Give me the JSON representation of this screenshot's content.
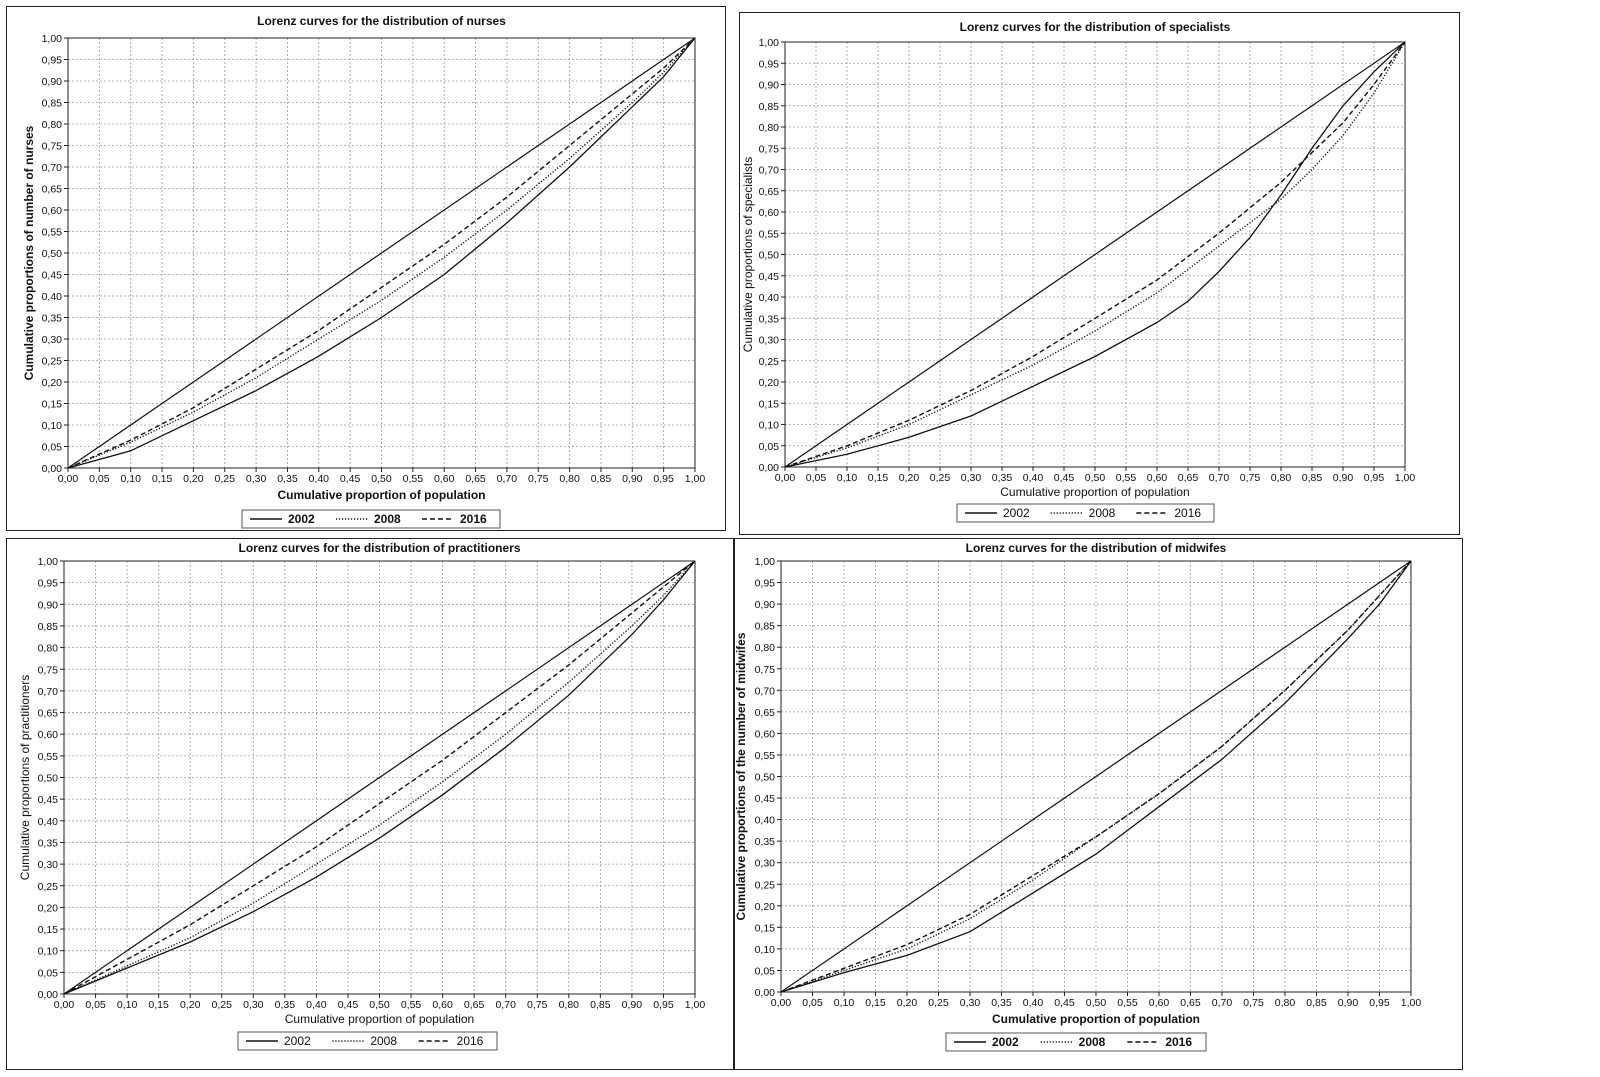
{
  "chart_data": [
    {
      "type": "line",
      "title": "Lorenz curves for the distribution of nurses",
      "xlabel": "Cumulative proportion of population",
      "ylabel": "Cumulative proportions of number of nurses",
      "xlim": [
        0,
        1
      ],
      "ylim": [
        0,
        1
      ],
      "ticks": [
        "0,00",
        "0,05",
        "0,10",
        "0,15",
        "0,20",
        "0,25",
        "0,30",
        "0,35",
        "0,40",
        "0,45",
        "0,50",
        "0,55",
        "0,60",
        "0,65",
        "0,70",
        "0,75",
        "0,80",
        "0,85",
        "0,90",
        "0,95",
        "1,00"
      ],
      "grid": true,
      "legend_position": "bottom",
      "label_weight": "bold",
      "series": [
        {
          "name": "2002",
          "style": "solid",
          "x": [
            0,
            0.1,
            0.2,
            0.3,
            0.4,
            0.5,
            0.6,
            0.7,
            0.8,
            0.9,
            0.95,
            1.0
          ],
          "y": [
            0,
            0.04,
            0.11,
            0.18,
            0.26,
            0.35,
            0.45,
            0.57,
            0.7,
            0.84,
            0.91,
            1.0
          ]
        },
        {
          "name": "2008",
          "style": "dotted",
          "x": [
            0,
            0.1,
            0.2,
            0.3,
            0.4,
            0.5,
            0.6,
            0.7,
            0.8,
            0.9,
            0.95,
            1.0
          ],
          "y": [
            0,
            0.06,
            0.13,
            0.21,
            0.3,
            0.39,
            0.49,
            0.6,
            0.72,
            0.85,
            0.92,
            1.0
          ]
        },
        {
          "name": "2016",
          "style": "dashed",
          "x": [
            0,
            0.1,
            0.2,
            0.3,
            0.4,
            0.5,
            0.6,
            0.7,
            0.8,
            0.9,
            0.95,
            1.0
          ],
          "y": [
            0,
            0.065,
            0.14,
            0.23,
            0.32,
            0.42,
            0.52,
            0.63,
            0.75,
            0.87,
            0.93,
            1.0
          ]
        }
      ]
    },
    {
      "type": "line",
      "title": "Lorenz curves for the distribution of specialists",
      "xlabel": "Cumulative proportion of population",
      "ylabel": "Cumulative proportions of specialists",
      "xlim": [
        0,
        1
      ],
      "ylim": [
        0,
        1
      ],
      "ticks": [
        "0,00",
        "0,05",
        "0,10",
        "0,15",
        "0,20",
        "0,25",
        "0,30",
        "0,35",
        "0,40",
        "0,45",
        "0,50",
        "0,55",
        "0,60",
        "0,65",
        "0,70",
        "0,75",
        "0,80",
        "0,85",
        "0,90",
        "0,95",
        "1,00"
      ],
      "grid": true,
      "legend_position": "bottom",
      "label_weight": "normal",
      "series": [
        {
          "name": "2002",
          "style": "solid",
          "x": [
            0,
            0.1,
            0.2,
            0.3,
            0.4,
            0.5,
            0.6,
            0.65,
            0.7,
            0.75,
            0.8,
            0.85,
            0.9,
            0.95,
            1.0
          ],
          "y": [
            0,
            0.03,
            0.07,
            0.12,
            0.19,
            0.26,
            0.34,
            0.39,
            0.46,
            0.54,
            0.64,
            0.75,
            0.85,
            0.93,
            1.0
          ]
        },
        {
          "name": "2008",
          "style": "dotted",
          "x": [
            0,
            0.1,
            0.2,
            0.3,
            0.4,
            0.5,
            0.6,
            0.7,
            0.8,
            0.85,
            0.9,
            0.95,
            1.0
          ],
          "y": [
            0,
            0.045,
            0.1,
            0.17,
            0.24,
            0.32,
            0.41,
            0.52,
            0.63,
            0.7,
            0.78,
            0.88,
            1.0
          ]
        },
        {
          "name": "2016",
          "style": "dashed",
          "x": [
            0,
            0.1,
            0.2,
            0.3,
            0.4,
            0.5,
            0.6,
            0.7,
            0.8,
            0.85,
            0.9,
            0.95,
            1.0
          ],
          "y": [
            0,
            0.05,
            0.11,
            0.18,
            0.26,
            0.35,
            0.44,
            0.55,
            0.67,
            0.74,
            0.81,
            0.9,
            1.0
          ]
        }
      ]
    },
    {
      "type": "line",
      "title": "Lorenz curves for the distribution of practitioners",
      "xlabel": "Cumulative proportion of population",
      "ylabel": "Cumulative proportions of practitioners",
      "xlim": [
        0,
        1
      ],
      "ylim": [
        0,
        1
      ],
      "ticks": [
        "0,00",
        "0,05",
        "0,10",
        "0,15",
        "0,20",
        "0,25",
        "0,30",
        "0,35",
        "0,40",
        "0,45",
        "0,50",
        "0,55",
        "0,60",
        "0,65",
        "0,70",
        "0,75",
        "0,80",
        "0,85",
        "0,90",
        "0,95",
        "1,00"
      ],
      "grid": true,
      "legend_position": "bottom",
      "label_weight": "normal",
      "series": [
        {
          "name": "2002",
          "style": "solid",
          "x": [
            0,
            0.1,
            0.2,
            0.3,
            0.4,
            0.5,
            0.6,
            0.7,
            0.8,
            0.9,
            0.95,
            1.0
          ],
          "y": [
            0,
            0.06,
            0.12,
            0.19,
            0.27,
            0.36,
            0.46,
            0.57,
            0.69,
            0.83,
            0.91,
            1.0
          ]
        },
        {
          "name": "2008",
          "style": "dotted",
          "x": [
            0,
            0.1,
            0.2,
            0.3,
            0.4,
            0.5,
            0.6,
            0.7,
            0.8,
            0.9,
            0.95,
            1.0
          ],
          "y": [
            0,
            0.065,
            0.13,
            0.21,
            0.3,
            0.39,
            0.49,
            0.6,
            0.72,
            0.85,
            0.92,
            1.0
          ]
        },
        {
          "name": "2016",
          "style": "dashed",
          "x": [
            0,
            0.1,
            0.2,
            0.3,
            0.4,
            0.5,
            0.6,
            0.7,
            0.8,
            0.9,
            0.95,
            1.0
          ],
          "y": [
            0,
            0.08,
            0.16,
            0.25,
            0.34,
            0.44,
            0.54,
            0.65,
            0.76,
            0.88,
            0.94,
            1.0
          ]
        }
      ]
    },
    {
      "type": "line",
      "title": "Lorenz curves for the distribution of midwifes",
      "xlabel": "Cumulative proportion of population",
      "ylabel": "Cumulative proportions of the number of midwifes",
      "xlim": [
        0,
        1
      ],
      "ylim": [
        0,
        1
      ],
      "ticks": [
        "0,00",
        "0,05",
        "0,10",
        "0,15",
        "0,20",
        "0,25",
        "0,30",
        "0,35",
        "0,40",
        "0,45",
        "0,50",
        "0,55",
        "0,60",
        "0,65",
        "0,70",
        "0,75",
        "0,80",
        "0,85",
        "0,90",
        "0,95",
        "1,00"
      ],
      "grid": true,
      "legend_position": "bottom",
      "label_weight": "bold",
      "series": [
        {
          "name": "2002",
          "style": "solid",
          "x": [
            0,
            0.1,
            0.2,
            0.3,
            0.4,
            0.5,
            0.6,
            0.7,
            0.8,
            0.9,
            0.95,
            1.0
          ],
          "y": [
            0,
            0.045,
            0.085,
            0.14,
            0.23,
            0.32,
            0.43,
            0.54,
            0.67,
            0.82,
            0.9,
            1.0
          ]
        },
        {
          "name": "2008",
          "style": "dotted",
          "x": [
            0,
            0.1,
            0.2,
            0.3,
            0.4,
            0.5,
            0.6,
            0.7,
            0.8,
            0.9,
            0.95,
            1.0
          ],
          "y": [
            0,
            0.05,
            0.1,
            0.17,
            0.26,
            0.36,
            0.46,
            0.57,
            0.7,
            0.84,
            0.92,
            1.0
          ]
        },
        {
          "name": "2016",
          "style": "dashed",
          "x": [
            0,
            0.1,
            0.2,
            0.3,
            0.4,
            0.5,
            0.6,
            0.7,
            0.8,
            0.9,
            0.95,
            1.0
          ],
          "y": [
            0,
            0.055,
            0.11,
            0.18,
            0.27,
            0.36,
            0.46,
            0.57,
            0.7,
            0.84,
            0.92,
            1.0
          ]
        }
      ]
    }
  ]
}
